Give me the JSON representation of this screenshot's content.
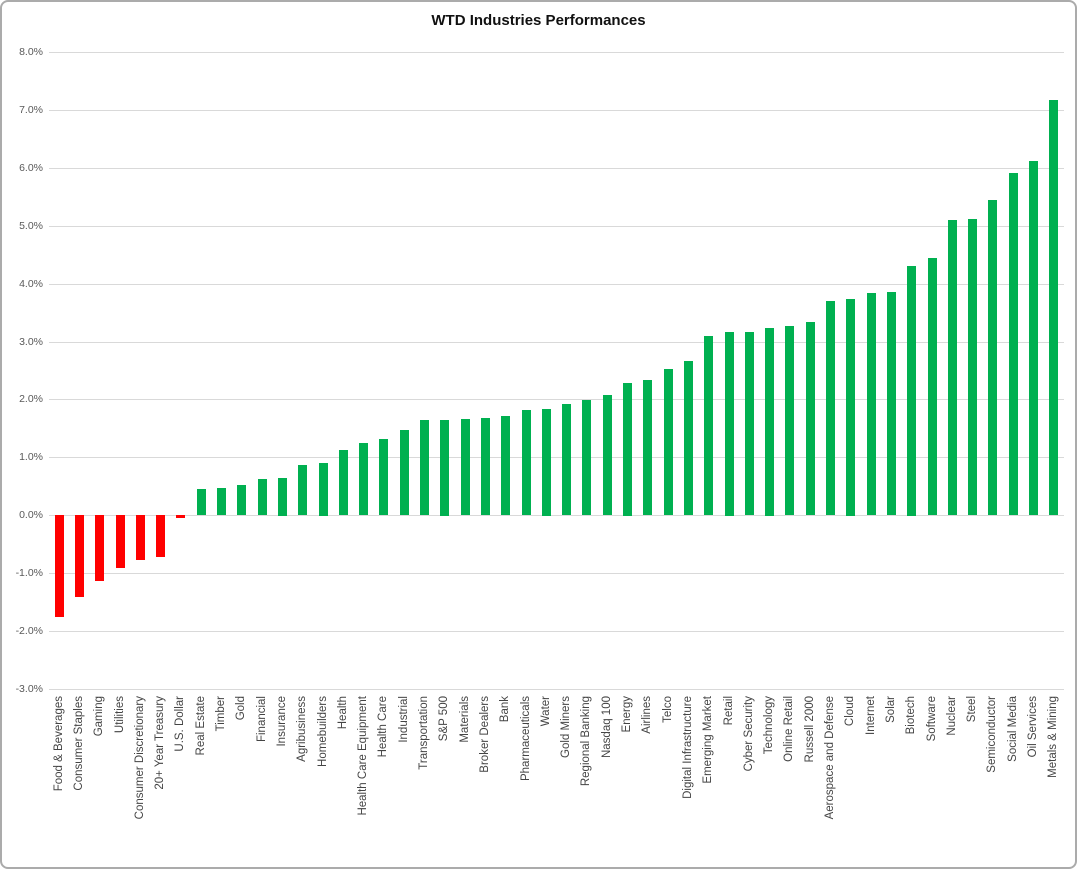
{
  "chart_data": {
    "type": "bar",
    "title": "WTD Industries Performances",
    "xlabel": "",
    "ylabel": "",
    "ylim": [
      -3.0,
      8.0
    ],
    "ytick_step": 1.0,
    "ytick_format": "one_decimal_percent",
    "grid": true,
    "legend": false,
    "colors": {
      "positive": "#00B050",
      "negative": "#FF0000",
      "gridline": "#D9D9D9",
      "tick_label": "#595959",
      "category_label": "#444444",
      "frame_border": "#ABABAB"
    },
    "categories": [
      "Food & Beverages",
      "Consumer Staples",
      "Gaming",
      "Utilities",
      "Consumer Discretionary",
      "20+ Year Treasury",
      "U.S. Dollar",
      "Real Estate",
      "Timber",
      "Gold",
      "Financial",
      "Insurance",
      "Agribusiness",
      "Homebuilders",
      "Health",
      "Health Care Equipment",
      "Health Care",
      "Industrial",
      "Transportation",
      "S&P 500",
      "Materials",
      "Broker Dealers",
      "Bank",
      "Pharmaceuticals",
      "Water",
      "Gold Miners",
      "Regional Banking",
      "Nasdaq 100",
      "Energy",
      "Airlines",
      "Telco",
      "Digital Infrastructure",
      "Emerging Market",
      "Retail",
      "Cyber Security",
      "Technology",
      "Online Retail",
      "Russell 2000",
      "Aerospace and Defense",
      "Cloud",
      "Internet",
      "Solar",
      "Biotech",
      "Software",
      "Nuclear",
      "Steel",
      "Semiconductor",
      "Social Media",
      "Oil Services",
      "Metals & Mining"
    ],
    "values": [
      -1.76,
      -1.42,
      -1.14,
      -0.91,
      -0.78,
      -0.72,
      -0.05,
      0.45,
      0.47,
      0.52,
      0.63,
      0.65,
      0.87,
      0.91,
      1.13,
      1.25,
      1.31,
      1.47,
      1.64,
      1.65,
      1.66,
      1.68,
      1.71,
      1.82,
      1.84,
      1.92,
      1.99,
      2.07,
      2.29,
      2.33,
      2.53,
      2.66,
      3.1,
      3.17,
      3.16,
      3.24,
      3.27,
      3.33,
      3.7,
      3.74,
      3.83,
      3.85,
      4.31,
      4.44,
      5.09,
      5.11,
      5.44,
      5.91,
      6.12,
      7.17
    ]
  }
}
